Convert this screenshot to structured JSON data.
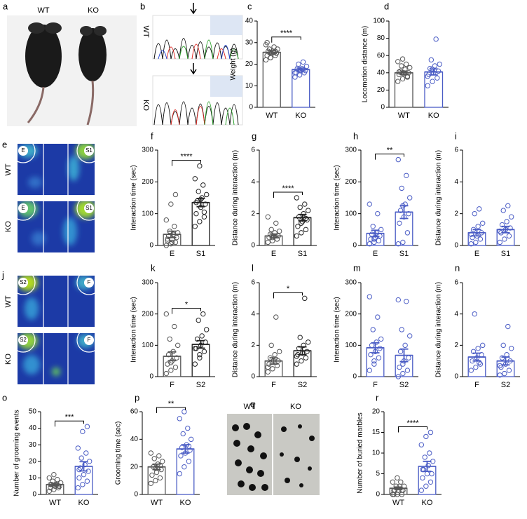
{
  "figures": [
    {
      "letter": "a",
      "labels": [
        "WT",
        "KO"
      ]
    },
    {
      "letter": "b",
      "labels": [
        "WT",
        "KO"
      ]
    },
    {
      "letter": "e",
      "labels": [
        "WT",
        "KO"
      ],
      "zones": [
        "E",
        "S1"
      ]
    },
    {
      "letter": "j",
      "labels": [
        "WT",
        "KO"
      ],
      "zones": [
        "S2",
        "F"
      ]
    },
    {
      "letter": "q",
      "labels": [
        "WT",
        "KO"
      ]
    }
  ],
  "chart_data": [
    {
      "type": "bar",
      "panel": "c",
      "ylabel": "Weight (g)",
      "categories": [
        "WT",
        "KO"
      ],
      "colors": [
        "#555555",
        "#4a5cc5"
      ],
      "values": [
        25.5,
        17.5
      ],
      "errors": [
        0.8,
        0.7
      ],
      "points": [
        [
          22,
          23,
          24,
          24,
          25,
          25,
          26,
          26,
          27,
          27,
          28,
          29,
          23,
          26,
          30,
          25
        ],
        [
          14,
          15,
          16,
          16,
          17,
          17,
          18,
          18,
          19,
          20,
          21,
          16,
          17
        ]
      ],
      "ylim": [
        0,
        40
      ],
      "yticks": [
        0,
        10,
        20,
        30,
        40
      ],
      "annotation": "****"
    },
    {
      "type": "bar",
      "panel": "d",
      "ylabel": "Locomotion distance (m)",
      "categories": [
        "WT",
        "KO"
      ],
      "colors": [
        "#555555",
        "#4a5cc5"
      ],
      "values": [
        40,
        41
      ],
      "errors": [
        2,
        3.5
      ],
      "points": [
        [
          30,
          33,
          35,
          38,
          40,
          40,
          42,
          44,
          46,
          48,
          50,
          53,
          56,
          36,
          41,
          39
        ],
        [
          25,
          30,
          34,
          38,
          40,
          42,
          45,
          48,
          50,
          55,
          79,
          36,
          44
        ]
      ],
      "ylim": [
        0,
        100
      ],
      "yticks": [
        0,
        20,
        40,
        60,
        80,
        100
      ]
    },
    {
      "type": "bar",
      "panel": "f",
      "ylabel": "Interaction time (sec)",
      "categories": [
        "E",
        "S1"
      ],
      "colors": [
        "#555555",
        "#222222"
      ],
      "values": [
        35,
        135
      ],
      "errors": [
        10,
        13
      ],
      "points": [
        [
          0,
          5,
          10,
          15,
          20,
          25,
          30,
          35,
          40,
          45,
          60,
          80,
          130,
          160,
          20,
          10
        ],
        [
          60,
          75,
          90,
          100,
          120,
          130,
          140,
          150,
          160,
          170,
          190,
          210,
          250,
          105,
          135,
          145
        ]
      ],
      "ylim": [
        0,
        300
      ],
      "yticks": [
        0,
        100,
        200,
        300
      ],
      "annotation": "****"
    },
    {
      "type": "bar",
      "panel": "g",
      "ylabel": "Distance during interaction (m)",
      "categories": [
        "E",
        "S1"
      ],
      "colors": [
        "#555555",
        "#222222"
      ],
      "values": [
        0.6,
        1.75
      ],
      "errors": [
        0.12,
        0.2
      ],
      "points": [
        [
          0.2,
          0.3,
          0.4,
          0.5,
          0.6,
          0.6,
          0.7,
          0.8,
          0.9,
          1.0,
          1.4,
          1.8,
          0.5,
          0.4
        ],
        [
          0.6,
          0.8,
          1.0,
          1.2,
          1.5,
          1.6,
          1.8,
          2.0,
          2.2,
          2.4,
          2.6,
          3.0,
          1.4,
          1.7
        ]
      ],
      "ylim": [
        0,
        6
      ],
      "yticks": [
        0,
        2,
        4,
        6
      ],
      "annotation": "****"
    },
    {
      "type": "bar",
      "panel": "h",
      "ylabel": "Interaction time (sec)",
      "categories": [
        "E",
        "S1"
      ],
      "colors": [
        "#4a5cc5",
        "#4a5cc5"
      ],
      "values": [
        38,
        105
      ],
      "errors": [
        10,
        20
      ],
      "points": [
        [
          5,
          10,
          15,
          20,
          25,
          30,
          35,
          40,
          50,
          60,
          100,
          130,
          20
        ],
        [
          5,
          10,
          40,
          70,
          90,
          100,
          110,
          130,
          150,
          180,
          220,
          270,
          125
        ]
      ],
      "ylim": [
        0,
        300
      ],
      "yticks": [
        0,
        100,
        200,
        300
      ],
      "annotation": "**"
    },
    {
      "type": "bar",
      "panel": "i",
      "ylabel": "Distance during interaction (m)",
      "categories": [
        "E",
        "S1"
      ],
      "colors": [
        "#4a5cc5",
        "#4a5cc5"
      ],
      "values": [
        0.8,
        1.0
      ],
      "errors": [
        0.2,
        0.2
      ],
      "points": [
        [
          0.1,
          0.2,
          0.4,
          0.5,
          0.6,
          0.8,
          1.0,
          1.2,
          1.4,
          2.0,
          2.3,
          0.7
        ],
        [
          0.2,
          0.4,
          0.6,
          0.8,
          1.0,
          1.1,
          1.3,
          1.5,
          1.8,
          2.2,
          2.5,
          0.9
        ]
      ],
      "ylim": [
        0,
        6
      ],
      "yticks": [
        0,
        2,
        4,
        6
      ]
    },
    {
      "type": "bar",
      "panel": "k",
      "ylabel": "Interaction time (sec)",
      "categories": [
        "F",
        "S2"
      ],
      "colors": [
        "#555555",
        "#222222"
      ],
      "values": [
        65,
        103
      ],
      "errors": [
        14,
        12
      ],
      "points": [
        [
          10,
          20,
          30,
          40,
          50,
          60,
          70,
          80,
          100,
          120,
          160,
          200,
          45
        ],
        [
          40,
          60,
          80,
          90,
          100,
          110,
          120,
          130,
          150,
          180,
          200,
          90,
          70
        ]
      ],
      "ylim": [
        0,
        300
      ],
      "yticks": [
        0,
        100,
        200,
        300
      ],
      "annotation": "*"
    },
    {
      "type": "bar",
      "panel": "l",
      "ylabel": "Distance during interaction (m)",
      "categories": [
        "F",
        "S2"
      ],
      "colors": [
        "#555555",
        "#222222"
      ],
      "values": [
        1.0,
        1.65
      ],
      "errors": [
        0.2,
        0.25
      ],
      "points": [
        [
          0.3,
          0.5,
          0.7,
          0.8,
          1.0,
          1.0,
          1.2,
          1.4,
          1.6,
          2.0,
          3.8,
          0.6
        ],
        [
          0.8,
          1.0,
          1.2,
          1.4,
          1.5,
          1.6,
          1.8,
          2.0,
          2.2,
          2.5,
          5.0,
          1.3
        ]
      ],
      "ylim": [
        0,
        6
      ],
      "yticks": [
        0,
        2,
        4,
        6
      ],
      "annotation": "*"
    },
    {
      "type": "bar",
      "panel": "m",
      "ylabel": "Interaction time (sec)",
      "categories": [
        "F",
        "S2"
      ],
      "colors": [
        "#4a5cc5",
        "#4a5cc5"
      ],
      "values": [
        92,
        68
      ],
      "errors": [
        16,
        20
      ],
      "points": [
        [
          20,
          40,
          60,
          70,
          80,
          90,
          100,
          110,
          120,
          150,
          190,
          255,
          50
        ],
        [
          0,
          10,
          20,
          30,
          50,
          60,
          80,
          100,
          130,
          150,
          240,
          245,
          40
        ]
      ],
      "ylim": [
        0,
        300
      ],
      "yticks": [
        0,
        100,
        200,
        300
      ]
    },
    {
      "type": "bar",
      "panel": "n",
      "ylabel": "Distance during interaction (m)",
      "categories": [
        "F",
        "S2"
      ],
      "colors": [
        "#4a5cc5",
        "#4a5cc5"
      ],
      "values": [
        1.25,
        1.0
      ],
      "errors": [
        0.25,
        0.25
      ],
      "points": [
        [
          0.4,
          0.6,
          0.8,
          1.0,
          1.2,
          1.4,
          1.6,
          1.8,
          2.0,
          4.0,
          0.9
        ],
        [
          0.1,
          0.2,
          0.4,
          0.6,
          0.8,
          1.0,
          1.2,
          1.4,
          1.8,
          2.0,
          3.2,
          0.7
        ]
      ],
      "ylim": [
        0,
        6
      ],
      "yticks": [
        0,
        2,
        4,
        6
      ]
    },
    {
      "type": "bar",
      "panel": "o",
      "ylabel": "Number of grooming events",
      "categories": [
        "WT",
        "KO"
      ],
      "colors": [
        "#555555",
        "#4a5cc5"
      ],
      "values": [
        6,
        17
      ],
      "errors": [
        0.8,
        2.8
      ],
      "points": [
        [
          2,
          3,
          4,
          4,
          5,
          5,
          6,
          6,
          7,
          8,
          9,
          10,
          12,
          5,
          6
        ],
        [
          4,
          6,
          8,
          10,
          12,
          14,
          16,
          18,
          20,
          22,
          25,
          28,
          38,
          41,
          15
        ]
      ],
      "ylim": [
        0,
        50
      ],
      "yticks": [
        0,
        10,
        20,
        30,
        40,
        50
      ],
      "annotation": "***"
    },
    {
      "type": "bar",
      "panel": "p",
      "ylabel": "Grooming time (sec)",
      "categories": [
        "WT",
        "KO"
      ],
      "colors": [
        "#555555",
        "#4a5cc5"
      ],
      "values": [
        20,
        33
      ],
      "errors": [
        2,
        3
      ],
      "points": [
        [
          8,
          10,
          12,
          14,
          16,
          18,
          20,
          22,
          24,
          26,
          28,
          30,
          19,
          21
        ],
        [
          15,
          20,
          24,
          28,
          30,
          32,
          34,
          36,
          40,
          44,
          48,
          55,
          60,
          35
        ]
      ],
      "ylim": [
        0,
        60
      ],
      "yticks": [
        0,
        20,
        40,
        60
      ],
      "annotation": "**"
    },
    {
      "type": "bar",
      "panel": "r",
      "ylabel": "Number of buried marbles",
      "categories": [
        "WT",
        "KO"
      ],
      "colors": [
        "#555555",
        "#4a5cc5"
      ],
      "values": [
        1.5,
        6.8
      ],
      "errors": [
        0.3,
        1.2
      ],
      "points": [
        [
          0,
          0,
          0,
          1,
          1,
          1,
          1,
          2,
          2,
          2,
          3,
          3,
          4,
          1,
          0
        ],
        [
          1,
          2,
          3,
          4,
          5,
          5,
          6,
          7,
          8,
          9,
          10,
          12,
          14,
          15,
          6
        ]
      ],
      "ylim": [
        0,
        20
      ],
      "yticks": [
        0,
        5,
        10,
        15,
        20
      ],
      "annotation": "****"
    }
  ]
}
